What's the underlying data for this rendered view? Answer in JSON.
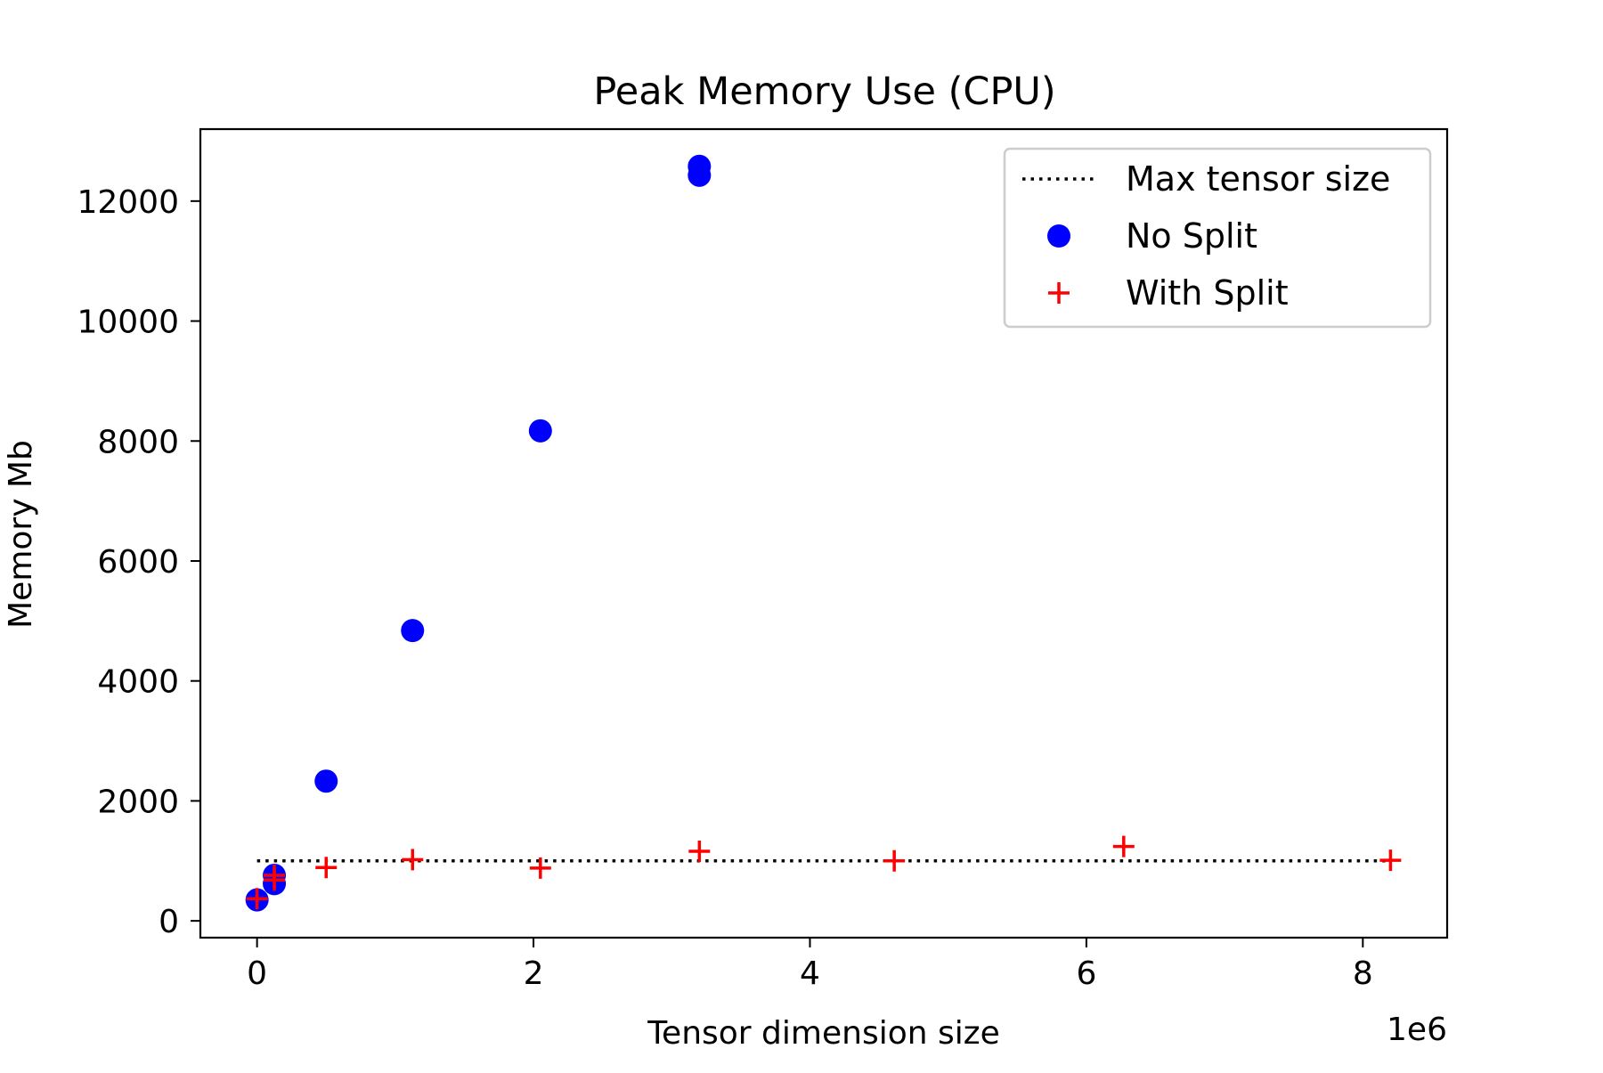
{
  "chart_data": {
    "type": "scatter",
    "title": "Peak Memory Use (CPU)",
    "xlabel": "Tensor dimension size",
    "ylabel": "Memory Mb",
    "x_offset_label": "1e6",
    "xlim": [
      -410000,
      8610000
    ],
    "ylim": [
      -280,
      13200
    ],
    "x_ticks": [
      0,
      2000000,
      4000000,
      6000000,
      8000000
    ],
    "x_tick_labels": [
      "0",
      "2",
      "4",
      "6",
      "8"
    ],
    "y_ticks": [
      0,
      2000,
      4000,
      6000,
      8000,
      10000,
      12000
    ],
    "y_tick_labels": [
      "0",
      "2000",
      "4000",
      "6000",
      "8000",
      "10000",
      "12000"
    ],
    "grid": false,
    "legend_position": "top-right",
    "series": [
      {
        "name": "Max tensor size",
        "kind": "line",
        "style": "dotted",
        "color": "#000000",
        "x": [
          0,
          8200000
        ],
        "y": [
          1000,
          1000
        ]
      },
      {
        "name": "No Split",
        "kind": "scatter",
        "marker": "circle",
        "color": "#0000ff",
        "x": [
          0,
          125000,
          125000,
          500000,
          1125000,
          2050000,
          3200000,
          3200000
        ],
        "y": [
          350,
          620,
          760,
          2330,
          4840,
          8170,
          12430,
          12580
        ]
      },
      {
        "name": "With Split",
        "kind": "scatter",
        "marker": "plus",
        "color": "#ff0000",
        "x": [
          0,
          125000,
          125000,
          500000,
          1125000,
          2050000,
          3200000,
          4610000,
          6270000,
          8200000
        ],
        "y": [
          370,
          680,
          760,
          890,
          1020,
          880,
          1160,
          1000,
          1240,
          1010
        ]
      }
    ]
  }
}
